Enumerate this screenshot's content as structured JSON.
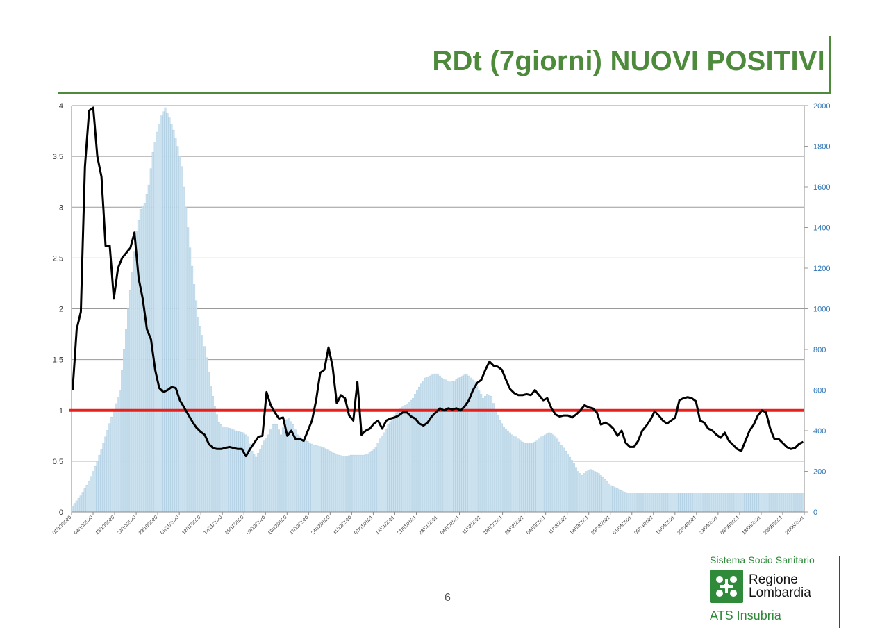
{
  "slide": {
    "title": "RDt (7giorni) NUOVI POSITIVI",
    "page_number": "6"
  },
  "logo": {
    "top_text": "Sistema Socio Sanitario",
    "name_line1": "Regione",
    "name_line2": "Lombardia",
    "sub_text": "ATS Insubria"
  },
  "colors": {
    "title_green": "#4d8a3b",
    "bars": "#cde2ef",
    "bar_edge": "#a9cbe0",
    "rdt_line": "#000000",
    "threshold_line": "#e8201c",
    "gridline": "#9a9a9a",
    "right_axis_text": "#2e75b6"
  },
  "chart_data": {
    "type": "bar+line",
    "x_labels": [
      "01/10/2020",
      "08/10/2020",
      "15/10/2020",
      "22/10/2020",
      "29/10/2020",
      "05/11/2020",
      "12/11/2020",
      "19/11/2020",
      "26/11/2020",
      "03/12/2020",
      "10/12/2020",
      "17/12/2020",
      "24/12/2020",
      "31/12/2020",
      "07/01/2021",
      "14/01/2021",
      "21/01/2021",
      "28/01/2021",
      "04/02/2021",
      "11/02/2021",
      "18/02/2021",
      "25/02/2021",
      "04/03/2021",
      "11/03/2021",
      "18/03/2021",
      "25/03/2021",
      "01/04/2021",
      "08/04/2021",
      "15/04/2021",
      "22/04/2021",
      "29/04/2021",
      "06/05/2021",
      "13/05/2021",
      "20/05/2021",
      "27/05/2021"
    ],
    "y_left": {
      "ticks": [
        "0",
        "0,5",
        "1",
        "1,5",
        "2",
        "2,5",
        "3",
        "3,5",
        "4"
      ],
      "min": 0,
      "max": 4
    },
    "y_right": {
      "ticks": [
        "0",
        "200",
        "400",
        "600",
        "800",
        "1000",
        "1200",
        "1400",
        "1600",
        "1800",
        "2000"
      ],
      "min": 0,
      "max": 2000
    },
    "threshold": 1,
    "bars_series": {
      "axis": "right",
      "anchors": [
        [
          0,
          30
        ],
        [
          4,
          80
        ],
        [
          8,
          150
        ],
        [
          12,
          250
        ],
        [
          16,
          370
        ],
        [
          20,
          500
        ],
        [
          23,
          600
        ],
        [
          25,
          800
        ],
        [
          27,
          1000
        ],
        [
          29,
          1180
        ],
        [
          31,
          1380
        ],
        [
          33,
          1490
        ],
        [
          35,
          1520
        ],
        [
          37,
          1610
        ],
        [
          39,
          1770
        ],
        [
          41,
          1870
        ],
        [
          43,
          1950
        ],
        [
          45,
          1990
        ],
        [
          47,
          1940
        ],
        [
          49,
          1880
        ],
        [
          51,
          1800
        ],
        [
          53,
          1700
        ],
        [
          55,
          1500
        ],
        [
          57,
          1300
        ],
        [
          59,
          1120
        ],
        [
          61,
          960
        ],
        [
          63,
          870
        ],
        [
          65,
          760
        ],
        [
          67,
          620
        ],
        [
          69,
          520
        ],
        [
          71,
          440
        ],
        [
          73,
          420
        ],
        [
          75,
          415
        ],
        [
          77,
          410
        ],
        [
          79,
          400
        ],
        [
          81,
          395
        ],
        [
          83,
          390
        ],
        [
          85,
          370
        ],
        [
          87,
          300
        ],
        [
          89,
          270
        ],
        [
          91,
          310
        ],
        [
          93,
          350
        ],
        [
          95,
          380
        ],
        [
          97,
          430
        ],
        [
          99,
          430
        ],
        [
          101,
          380
        ],
        [
          103,
          450
        ],
        [
          105,
          460
        ],
        [
          107,
          430
        ],
        [
          109,
          380
        ],
        [
          111,
          360
        ],
        [
          113,
          355
        ],
        [
          115,
          340
        ],
        [
          117,
          330
        ],
        [
          119,
          325
        ],
        [
          121,
          320
        ],
        [
          123,
          310
        ],
        [
          125,
          300
        ],
        [
          127,
          290
        ],
        [
          129,
          280
        ],
        [
          131,
          275
        ],
        [
          133,
          275
        ],
        [
          135,
          280
        ],
        [
          137,
          280
        ],
        [
          139,
          280
        ],
        [
          141,
          280
        ],
        [
          143,
          285
        ],
        [
          145,
          300
        ],
        [
          147,
          320
        ],
        [
          149,
          360
        ],
        [
          151,
          390
        ],
        [
          153,
          430
        ],
        [
          155,
          460
        ],
        [
          157,
          490
        ],
        [
          159,
          510
        ],
        [
          161,
          525
        ],
        [
          163,
          540
        ],
        [
          165,
          560
        ],
        [
          167,
          600
        ],
        [
          169,
          630
        ],
        [
          171,
          660
        ],
        [
          173,
          670
        ],
        [
          175,
          680
        ],
        [
          177,
          680
        ],
        [
          179,
          660
        ],
        [
          181,
          650
        ],
        [
          183,
          640
        ],
        [
          185,
          645
        ],
        [
          187,
          660
        ],
        [
          189,
          670
        ],
        [
          191,
          680
        ],
        [
          193,
          660
        ],
        [
          195,
          640
        ],
        [
          197,
          600
        ],
        [
          199,
          560
        ],
        [
          201,
          580
        ],
        [
          203,
          570
        ],
        [
          205,
          500
        ],
        [
          207,
          450
        ],
        [
          209,
          420
        ],
        [
          211,
          400
        ],
        [
          213,
          380
        ],
        [
          215,
          370
        ],
        [
          217,
          350
        ],
        [
          219,
          340
        ],
        [
          221,
          340
        ],
        [
          223,
          340
        ],
        [
          225,
          350
        ],
        [
          227,
          370
        ],
        [
          229,
          380
        ],
        [
          231,
          390
        ],
        [
          233,
          380
        ],
        [
          235,
          360
        ],
        [
          237,
          330
        ],
        [
          239,
          300
        ],
        [
          241,
          270
        ],
        [
          243,
          240
        ],
        [
          245,
          200
        ],
        [
          247,
          180
        ],
        [
          249,
          200
        ],
        [
          251,
          210
        ],
        [
          253,
          200
        ],
        [
          255,
          190
        ],
        [
          257,
          170
        ],
        [
          259,
          150
        ],
        [
          261,
          130
        ],
        [
          263,
          120
        ],
        [
          265,
          110
        ],
        [
          267,
          100
        ],
        [
          269,
          95
        ]
      ]
    },
    "line_series": {
      "axis": "left",
      "anchors": [
        [
          0,
          1.2
        ],
        [
          2,
          1.8
        ],
        [
          4,
          1.97
        ],
        [
          6,
          3.4
        ],
        [
          8,
          3.95
        ],
        [
          10,
          3.98
        ],
        [
          12,
          3.5
        ],
        [
          14,
          3.3
        ],
        [
          16,
          2.62
        ],
        [
          18,
          2.62
        ],
        [
          20,
          2.1
        ],
        [
          22,
          2.4
        ],
        [
          24,
          2.5
        ],
        [
          26,
          2.55
        ],
        [
          28,
          2.6
        ],
        [
          30,
          2.75
        ],
        [
          32,
          2.3
        ],
        [
          34,
          2.1
        ],
        [
          36,
          1.8
        ],
        [
          38,
          1.7
        ],
        [
          40,
          1.4
        ],
        [
          42,
          1.22
        ],
        [
          44,
          1.18
        ],
        [
          46,
          1.2
        ],
        [
          48,
          1.23
        ],
        [
          50,
          1.22
        ],
        [
          52,
          1.1
        ],
        [
          54,
          1.03
        ],
        [
          56,
          0.96
        ],
        [
          58,
          0.89
        ],
        [
          60,
          0.83
        ],
        [
          62,
          0.79
        ],
        [
          64,
          0.76
        ],
        [
          66,
          0.67
        ],
        [
          68,
          0.63
        ],
        [
          70,
          0.62
        ],
        [
          72,
          0.62
        ],
        [
          74,
          0.63
        ],
        [
          76,
          0.64
        ],
        [
          78,
          0.63
        ],
        [
          80,
          0.62
        ],
        [
          82,
          0.62
        ],
        [
          84,
          0.55
        ],
        [
          86,
          0.62
        ],
        [
          88,
          0.68
        ],
        [
          90,
          0.74
        ],
        [
          92,
          0.75
        ],
        [
          94,
          1.18
        ],
        [
          96,
          1.05
        ],
        [
          98,
          0.98
        ],
        [
          100,
          0.92
        ],
        [
          102,
          0.93
        ],
        [
          104,
          0.75
        ],
        [
          106,
          0.8
        ],
        [
          108,
          0.72
        ],
        [
          110,
          0.72
        ],
        [
          112,
          0.7
        ],
        [
          114,
          0.8
        ],
        [
          116,
          0.9
        ],
        [
          118,
          1.1
        ],
        [
          120,
          1.37
        ],
        [
          122,
          1.4
        ],
        [
          124,
          1.62
        ],
        [
          126,
          1.43
        ],
        [
          128,
          1.07
        ],
        [
          130,
          1.15
        ],
        [
          132,
          1.12
        ],
        [
          134,
          0.95
        ],
        [
          136,
          0.9
        ],
        [
          138,
          1.28
        ],
        [
          140,
          0.76
        ],
        [
          142,
          0.8
        ],
        [
          144,
          0.82
        ],
        [
          146,
          0.87
        ],
        [
          148,
          0.9
        ],
        [
          150,
          0.82
        ],
        [
          152,
          0.9
        ],
        [
          154,
          0.92
        ],
        [
          156,
          0.93
        ],
        [
          158,
          0.95
        ],
        [
          160,
          0.98
        ],
        [
          162,
          0.98
        ],
        [
          164,
          0.94
        ],
        [
          166,
          0.92
        ],
        [
          168,
          0.87
        ],
        [
          170,
          0.85
        ],
        [
          172,
          0.88
        ],
        [
          174,
          0.94
        ],
        [
          176,
          0.98
        ],
        [
          178,
          1.02
        ],
        [
          180,
          1.0
        ],
        [
          182,
          1.02
        ],
        [
          184,
          1.01
        ],
        [
          186,
          1.02
        ],
        [
          188,
          1.0
        ],
        [
          190,
          1.04
        ],
        [
          192,
          1.1
        ],
        [
          194,
          1.2
        ],
        [
          196,
          1.27
        ],
        [
          198,
          1.3
        ],
        [
          200,
          1.4
        ],
        [
          202,
          1.48
        ],
        [
          204,
          1.44
        ],
        [
          206,
          1.43
        ],
        [
          208,
          1.4
        ],
        [
          210,
          1.3
        ],
        [
          212,
          1.21
        ],
        [
          214,
          1.17
        ],
        [
          216,
          1.15
        ],
        [
          218,
          1.15
        ],
        [
          220,
          1.16
        ],
        [
          222,
          1.15
        ],
        [
          224,
          1.2
        ],
        [
          226,
          1.15
        ],
        [
          228,
          1.1
        ],
        [
          230,
          1.12
        ],
        [
          232,
          1.02
        ],
        [
          234,
          0.96
        ],
        [
          236,
          0.94
        ],
        [
          238,
          0.95
        ],
        [
          240,
          0.95
        ],
        [
          242,
          0.93
        ],
        [
          244,
          0.96
        ],
        [
          246,
          1.0
        ],
        [
          248,
          1.05
        ],
        [
          250,
          1.03
        ],
        [
          252,
          1.02
        ],
        [
          254,
          0.98
        ],
        [
          256,
          0.86
        ],
        [
          258,
          0.88
        ],
        [
          260,
          0.86
        ],
        [
          262,
          0.82
        ],
        [
          264,
          0.75
        ],
        [
          266,
          0.8
        ],
        [
          268,
          0.68
        ],
        [
          270,
          0.64
        ],
        [
          272,
          0.64
        ],
        [
          274,
          0.7
        ],
        [
          276,
          0.8
        ],
        [
          278,
          0.85
        ],
        [
          280,
          0.91
        ],
        [
          282,
          0.99
        ],
        [
          284,
          0.95
        ],
        [
          286,
          0.9
        ],
        [
          288,
          0.87
        ],
        [
          290,
          0.9
        ],
        [
          292,
          0.93
        ],
        [
          294,
          1.1
        ],
        [
          296,
          1.12
        ],
        [
          298,
          1.13
        ],
        [
          300,
          1.12
        ],
        [
          302,
          1.09
        ],
        [
          304,
          0.9
        ],
        [
          306,
          0.88
        ],
        [
          308,
          0.82
        ],
        [
          310,
          0.8
        ],
        [
          312,
          0.76
        ],
        [
          314,
          0.73
        ],
        [
          316,
          0.78
        ],
        [
          318,
          0.7
        ],
        [
          320,
          0.66
        ],
        [
          322,
          0.62
        ],
        [
          324,
          0.6
        ],
        [
          326,
          0.7
        ],
        [
          328,
          0.8
        ],
        [
          330,
          0.86
        ],
        [
          332,
          0.95
        ],
        [
          334,
          1.0
        ],
        [
          336,
          0.98
        ],
        [
          338,
          0.82
        ],
        [
          340,
          0.72
        ],
        [
          342,
          0.72
        ],
        [
          344,
          0.68
        ],
        [
          346,
          0.64
        ],
        [
          348,
          0.62
        ],
        [
          350,
          0.63
        ],
        [
          352,
          0.67
        ],
        [
          354,
          0.69
        ]
      ]
    }
  }
}
